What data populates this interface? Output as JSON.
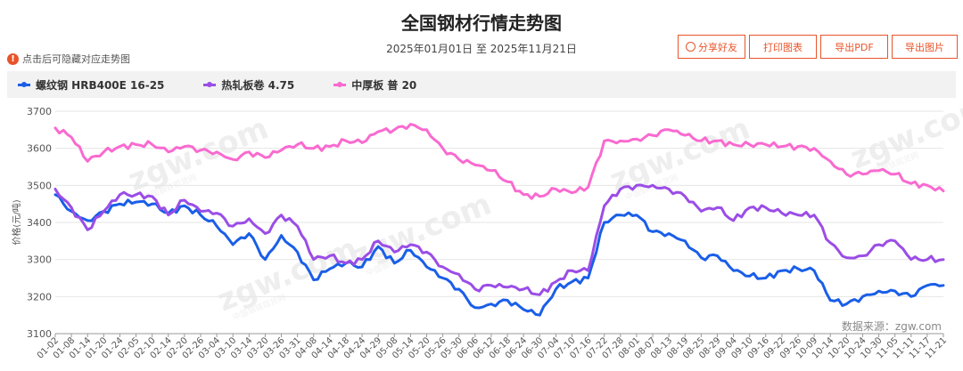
{
  "title": "全国钢材行情走势图",
  "date_range": "2025年01月01日 至 2025年11月21日",
  "hint": "点击后可隐藏对应走势图",
  "hint_icon": "exclamation-icon",
  "toolbar": {
    "share": "分享好友",
    "print": "打印图表",
    "pdf": "导出PDF",
    "image": "导出图片"
  },
  "watermark": "zgw.com",
  "watermark_sub": "中国钢铁现货网",
  "source": "数据来源：zgw.com",
  "colors": {
    "accent": "#e8542a",
    "rebar": "#1a5ee8",
    "hrc": "#9b4de6",
    "plate": "#f96ad0"
  },
  "chart_data": {
    "type": "line",
    "ylabel": "价格(元/吨)",
    "ylim": [
      3100,
      3700
    ],
    "yticks": [
      3100,
      3200,
      3300,
      3400,
      3500,
      3600,
      3700
    ],
    "grid": true,
    "legend_position": "top-left",
    "x_tick_labels": [
      "01-02",
      "01-08",
      "01-14",
      "01-20",
      "01-24",
      "02-05",
      "02-10",
      "02-14",
      "02-20",
      "02-26",
      "03-04",
      "03-10",
      "03-14",
      "03-20",
      "03-26",
      "03-31",
      "04-08",
      "04-14",
      "04-18",
      "04-24",
      "04-29",
      "05-08",
      "05-14",
      "05-20",
      "05-26",
      "05-30",
      "06-06",
      "06-12",
      "06-18",
      "06-24",
      "06-30",
      "07-04",
      "07-10",
      "07-16",
      "07-22",
      "07-28",
      "08-01",
      "08-07",
      "08-13",
      "08-19",
      "08-25",
      "08-29",
      "09-04",
      "09-10",
      "09-16",
      "09-22",
      "09-26",
      "10-09",
      "10-14",
      "10-20",
      "10-24",
      "10-30",
      "11-05",
      "11-11",
      "11-17",
      "11-21"
    ],
    "series": [
      {
        "name": "螺纹钢 HRB400E 16-25",
        "values": [
          3475,
          3430,
          3405,
          3430,
          3450,
          3455,
          3450,
          3425,
          3445,
          3420,
          3390,
          3340,
          3370,
          3300,
          3365,
          3320,
          3245,
          3275,
          3290,
          3280,
          3335,
          3290,
          3325,
          3280,
          3250,
          3220,
          3170,
          3180,
          3190,
          3165,
          3150,
          3220,
          3240,
          3250,
          3400,
          3420,
          3420,
          3375,
          3370,
          3350,
          3305,
          3310,
          3270,
          3255,
          3250,
          3270,
          3275,
          3270,
          3190,
          3180,
          3200,
          3215,
          3215,
          3200,
          3230,
          3230
        ]
      },
      {
        "name": "热轧板卷 4.75",
        "values": [
          3490,
          3440,
          3380,
          3430,
          3475,
          3475,
          3470,
          3420,
          3460,
          3430,
          3425,
          3390,
          3410,
          3370,
          3420,
          3390,
          3300,
          3310,
          3290,
          3300,
          3350,
          3320,
          3340,
          3320,
          3280,
          3260,
          3220,
          3230,
          3225,
          3220,
          3205,
          3240,
          3270,
          3270,
          3445,
          3490,
          3500,
          3500,
          3490,
          3470,
          3430,
          3440,
          3405,
          3440,
          3440,
          3425,
          3420,
          3420,
          3345,
          3305,
          3310,
          3340,
          3350,
          3300,
          3300,
          3300
        ]
      },
      {
        "name": "中厚板 普 20",
        "values": [
          3655,
          3630,
          3565,
          3590,
          3605,
          3610,
          3610,
          3590,
          3605,
          3595,
          3590,
          3570,
          3590,
          3575,
          3595,
          3610,
          3600,
          3605,
          3620,
          3615,
          3645,
          3650,
          3665,
          3650,
          3600,
          3570,
          3555,
          3540,
          3510,
          3475,
          3470,
          3490,
          3480,
          3495,
          3620,
          3620,
          3625,
          3635,
          3650,
          3635,
          3620,
          3620,
          3610,
          3610,
          3610,
          3605,
          3605,
          3600,
          3565,
          3530,
          3530,
          3540,
          3530,
          3505,
          3500,
          3485
        ]
      }
    ]
  }
}
